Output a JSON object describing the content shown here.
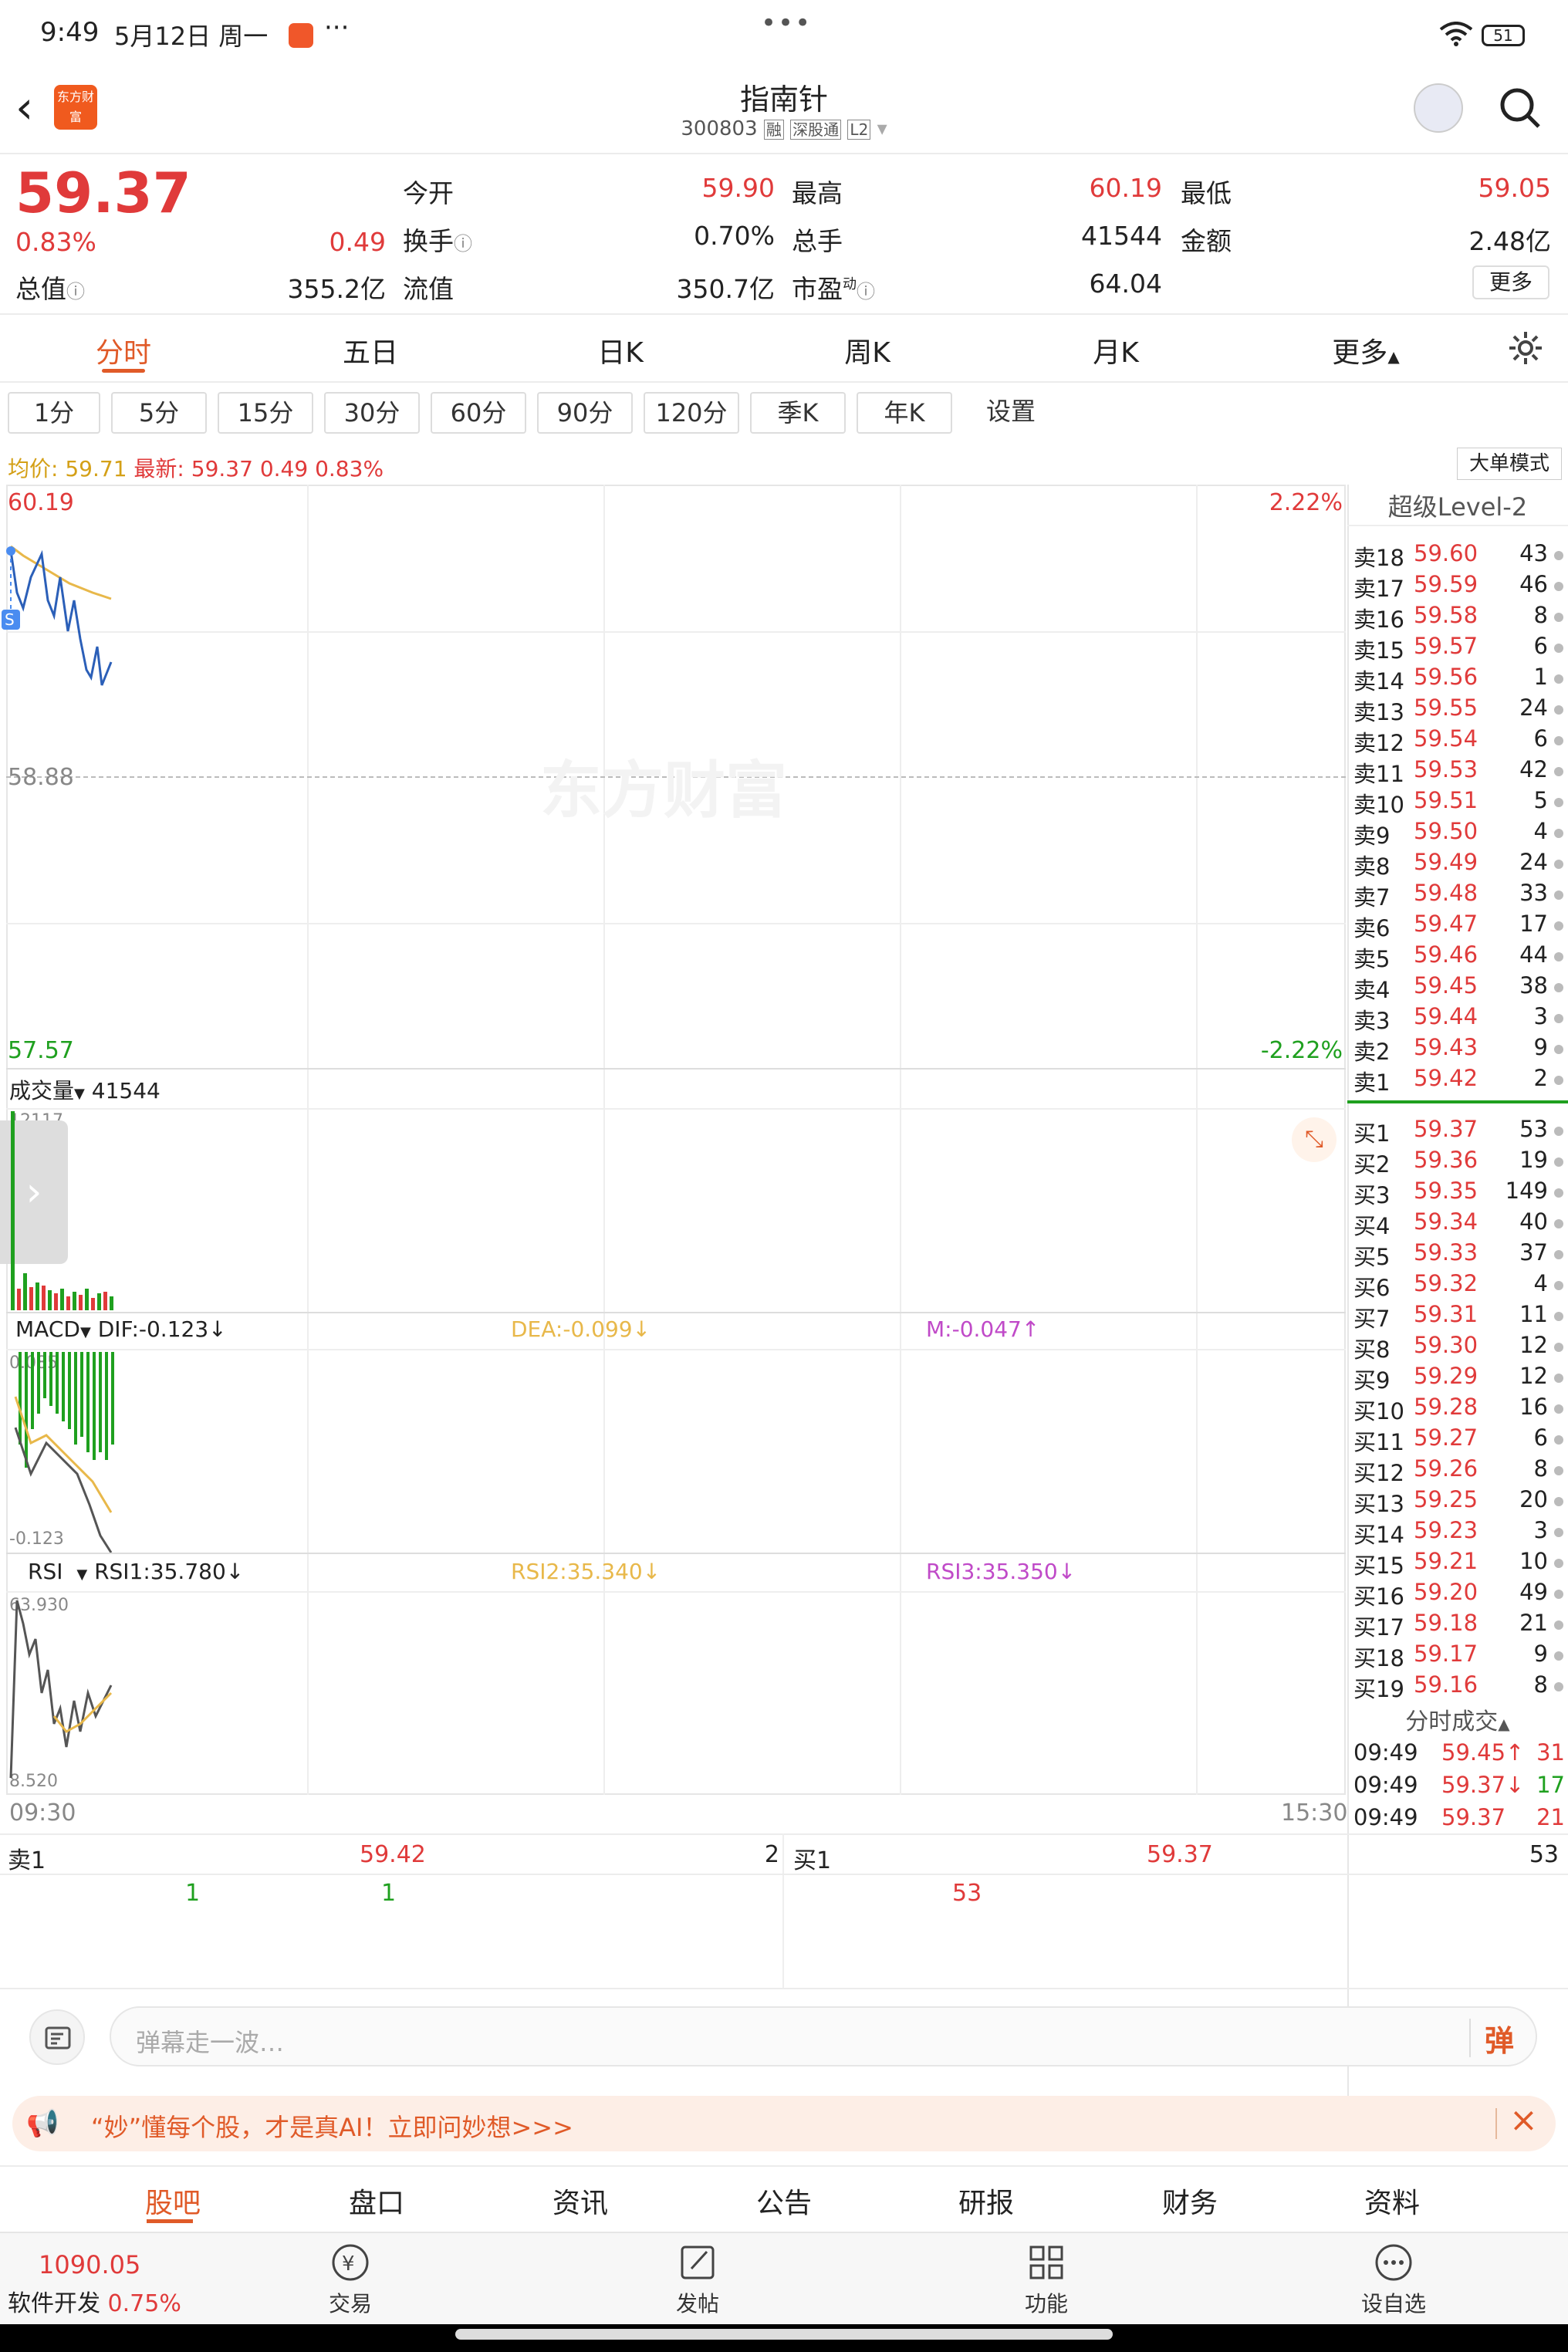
{
  "status_bar": {
    "time": "9:49",
    "date": "5月12日 周一",
    "dots": "···",
    "center_dots": "•••",
    "battery": "51"
  },
  "header": {
    "logo": "东方财富",
    "title": "指南针",
    "code": "300803",
    "tags": [
      "融",
      "深股通",
      "L2"
    ]
  },
  "quote": {
    "price": "59.37",
    "pct": "0.83%",
    "change": "0.49",
    "open_label": "今开",
    "open": "59.90",
    "high_label": "最高",
    "high": "60.19",
    "low_label": "最低",
    "low": "59.05",
    "turnover_label": "换手",
    "turnover": "0.70%",
    "volume_label": "总手",
    "volume": "41544",
    "amount_label": "金额",
    "amount": "2.48亿",
    "mktcap_label": "总值",
    "mktcap": "355.2亿",
    "float_label": "流值",
    "float": "350.7亿",
    "pe_label": "市盈",
    "pe_sup": "动",
    "pe": "64.04",
    "more": "更多"
  },
  "tabs": [
    "分时",
    "五日",
    "日K",
    "周K",
    "月K",
    "更多"
  ],
  "periods": [
    "1分",
    "5分",
    "15分",
    "30分",
    "60分",
    "90分",
    "120分",
    "季K",
    "年K",
    "设置"
  ],
  "info_line": {
    "avg_label": "均价:",
    "avg": "59.71",
    "latest_label": "最新:",
    "latest": "59.37",
    "chg": "0.49",
    "pct": "0.83%",
    "mode": "大单模式"
  },
  "chart": {
    "y_top": "60.19",
    "y_mid": "58.88",
    "y_bot": "57.57",
    "pct_top": "2.22%",
    "pct_bot": "-2.22%",
    "watermark": "东方财富",
    "time_start": "09:30",
    "time_end": "15:30"
  },
  "volume_panel": {
    "label": "成交量",
    "value": "41544",
    "max": "12117"
  },
  "macd_panel": {
    "label": "MACD",
    "dif": "DIF:-0.123",
    "dea": "DEA:-0.099",
    "m": "M:-0.047",
    "top": "0.085",
    "bot": "-0.123"
  },
  "rsi_panel": {
    "label": "RSI",
    "rsi1": "RSI1:35.780",
    "rsi2": "RSI2:35.340",
    "rsi3": "RSI3:35.350",
    "top": "63.930",
    "bot": "8.520"
  },
  "orderbook": {
    "title": "超级Level-2",
    "asks": [
      {
        "l": "卖18",
        "p": "59.60",
        "v": "43"
      },
      {
        "l": "卖17",
        "p": "59.59",
        "v": "46"
      },
      {
        "l": "卖16",
        "p": "59.58",
        "v": "8"
      },
      {
        "l": "卖15",
        "p": "59.57",
        "v": "6"
      },
      {
        "l": "卖14",
        "p": "59.56",
        "v": "1"
      },
      {
        "l": "卖13",
        "p": "59.55",
        "v": "24"
      },
      {
        "l": "卖12",
        "p": "59.54",
        "v": "6"
      },
      {
        "l": "卖11",
        "p": "59.53",
        "v": "42"
      },
      {
        "l": "卖10",
        "p": "59.51",
        "v": "5"
      },
      {
        "l": "卖9",
        "p": "59.50",
        "v": "4"
      },
      {
        "l": "卖8",
        "p": "59.49",
        "v": "24"
      },
      {
        "l": "卖7",
        "p": "59.48",
        "v": "33"
      },
      {
        "l": "卖6",
        "p": "59.47",
        "v": "17"
      },
      {
        "l": "卖5",
        "p": "59.46",
        "v": "44"
      },
      {
        "l": "卖4",
        "p": "59.45",
        "v": "38"
      },
      {
        "l": "卖3",
        "p": "59.44",
        "v": "3"
      },
      {
        "l": "卖2",
        "p": "59.43",
        "v": "9"
      },
      {
        "l": "卖1",
        "p": "59.42",
        "v": "2"
      }
    ],
    "bids": [
      {
        "l": "买1",
        "p": "59.37",
        "v": "53"
      },
      {
        "l": "买2",
        "p": "59.36",
        "v": "19"
      },
      {
        "l": "买3",
        "p": "59.35",
        "v": "149"
      },
      {
        "l": "买4",
        "p": "59.34",
        "v": "40"
      },
      {
        "l": "买5",
        "p": "59.33",
        "v": "37"
      },
      {
        "l": "买6",
        "p": "59.32",
        "v": "4"
      },
      {
        "l": "买7",
        "p": "59.31",
        "v": "11"
      },
      {
        "l": "买8",
        "p": "59.30",
        "v": "12"
      },
      {
        "l": "买9",
        "p": "59.29",
        "v": "12"
      },
      {
        "l": "买10",
        "p": "59.28",
        "v": "16"
      },
      {
        "l": "买11",
        "p": "59.27",
        "v": "6"
      },
      {
        "l": "买12",
        "p": "59.26",
        "v": "8"
      },
      {
        "l": "买13",
        "p": "59.25",
        "v": "20"
      },
      {
        "l": "买14",
        "p": "59.23",
        "v": "3"
      },
      {
        "l": "买15",
        "p": "59.21",
        "v": "10"
      },
      {
        "l": "买16",
        "p": "59.20",
        "v": "49"
      },
      {
        "l": "买17",
        "p": "59.18",
        "v": "21"
      },
      {
        "l": "买18",
        "p": "59.17",
        "v": "9"
      },
      {
        "l": "买19",
        "p": "59.16",
        "v": "8"
      }
    ],
    "trades_title": "分时成交",
    "trades": [
      {
        "t": "09:49",
        "p": "59.45↑",
        "v": "31"
      },
      {
        "t": "09:49",
        "p": "59.37↓",
        "v": "17"
      },
      {
        "t": "09:49",
        "p": "59.37",
        "v": "21"
      }
    ]
  },
  "queue": {
    "ask_label": "卖1",
    "ask_price": "59.42",
    "ask_qty": "2",
    "bid_label": "买1",
    "bid_price": "59.37",
    "bid_qty": "53",
    "ask_items": [
      "1",
      "1"
    ],
    "bid_items": [
      "53"
    ]
  },
  "comment": {
    "placeholder": "弹幕走一波…",
    "danmu": "弹"
  },
  "ad": {
    "text": "“妙”懂每个股，才是真AI！立即问妙想>>>"
  },
  "subtabs": [
    "股吧",
    "盘口",
    "资讯",
    "公告",
    "研报",
    "财务",
    "资料"
  ],
  "bottom": {
    "index_value": "1090.05",
    "index_name": "软件开发",
    "index_pct": "0.75%",
    "items": [
      "交易",
      "发帖",
      "功能",
      "设自选"
    ]
  }
}
